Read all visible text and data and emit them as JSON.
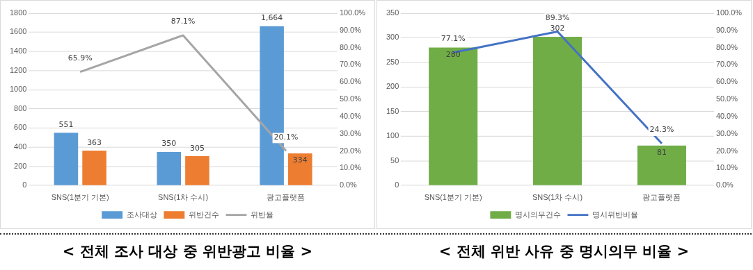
{
  "chart_data": [
    {
      "type": "bar",
      "title": "< 전체 조사 대상 중 위반광고 비율 >",
      "categories": [
        "SNS(1분기 기본)",
        "SNS(1차 수시)",
        "광고플랫폼"
      ],
      "series": [
        {
          "name": "조사대상",
          "color": "#5b9bd5",
          "values": [
            551,
            350,
            1664
          ],
          "value_labels": [
            "551",
            "350",
            "1,664"
          ]
        },
        {
          "name": "위반건수",
          "color": "#ed7d31",
          "values": [
            363,
            305,
            334
          ],
          "value_labels": [
            "363",
            "305",
            "334"
          ]
        },
        {
          "name": "위반율",
          "type": "line",
          "axis": "y2",
          "color": "#a5a5a5",
          "values": [
            65.9,
            87.1,
            20.1
          ],
          "value_labels": [
            "65.9%",
            "87.1%",
            "20.1%"
          ]
        }
      ],
      "ylim": [
        0,
        1800
      ],
      "yticks": [
        0,
        200,
        400,
        600,
        800,
        1000,
        1200,
        1400,
        1600,
        1800
      ],
      "y2lim": [
        0,
        100
      ],
      "y2ticks": [
        {
          "value": 0,
          "label": "0.0%"
        },
        {
          "value": 10,
          "label": "10.0%"
        },
        {
          "value": 20,
          "label": "20.0%"
        },
        {
          "value": 30,
          "label": "30.0%"
        },
        {
          "value": 40,
          "label": "40.0%"
        },
        {
          "value": 50,
          "label": "50.0%"
        },
        {
          "value": 60,
          "label": "60.0%"
        },
        {
          "value": 70,
          "label": "70.0%"
        },
        {
          "value": 80,
          "label": "80.0%"
        },
        {
          "value": 90,
          "label": "90.0%"
        },
        {
          "value": 100,
          "label": "100.0%"
        }
      ],
      "grid": "y",
      "legend": "bottom"
    },
    {
      "type": "bar",
      "title": "< 전체 위반 사유 중 명시의무 비율 >",
      "categories": [
        "SNS(1분기 기본)",
        "SNS(1차 수시)",
        "광고플랫폼"
      ],
      "series": [
        {
          "name": "명시의무건수",
          "color": "#70ad47",
          "values": [
            280,
            302,
            81
          ],
          "value_labels": [
            "280",
            "302",
            "81"
          ]
        },
        {
          "name": "명시위반비율",
          "type": "line",
          "axis": "y2",
          "color": "#4472c4",
          "values": [
            77.1,
            89.3,
            24.3
          ],
          "value_labels": [
            "77.1%",
            "89.3%",
            "24.3%"
          ]
        }
      ],
      "ylim": [
        0,
        350
      ],
      "yticks": [
        0,
        50,
        100,
        150,
        200,
        250,
        300,
        350
      ],
      "y2lim": [
        0,
        100
      ],
      "y2ticks": [
        {
          "value": 0,
          "label": "0.0%"
        },
        {
          "value": 10,
          "label": "10.0%"
        },
        {
          "value": 20,
          "label": "20.0%"
        },
        {
          "value": 30,
          "label": "30.0%"
        },
        {
          "value": 40,
          "label": "40.0%"
        },
        {
          "value": 50,
          "label": "50.0%"
        },
        {
          "value": 60,
          "label": "60.0%"
        },
        {
          "value": 70,
          "label": "70.0%"
        },
        {
          "value": 80,
          "label": "80.0%"
        },
        {
          "value": 90,
          "label": "90.0%"
        },
        {
          "value": 100,
          "label": "100.0%"
        }
      ],
      "grid": "y",
      "legend": "bottom"
    }
  ]
}
